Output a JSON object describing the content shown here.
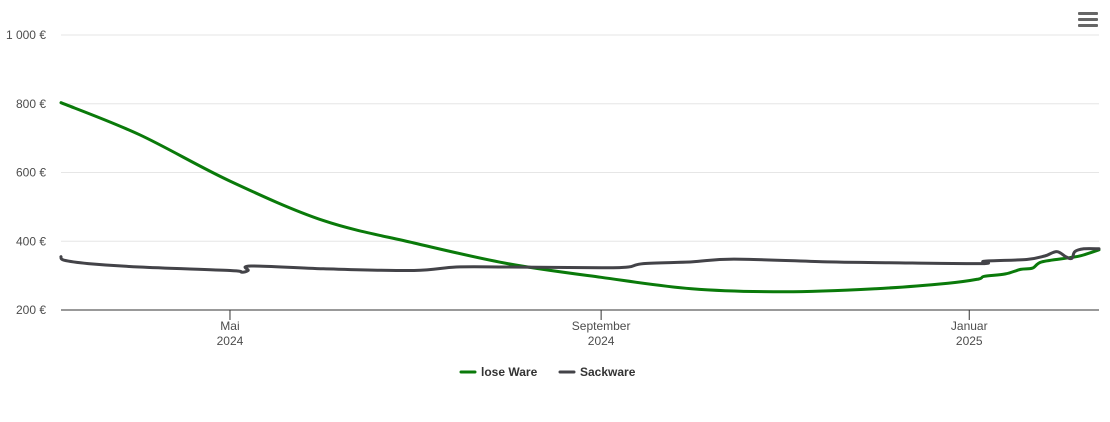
{
  "menu": {
    "icon": "hamburger-menu-icon"
  },
  "chart_data": {
    "type": "line",
    "y_ticks": [
      {
        "value": 200,
        "label": "200 €"
      },
      {
        "value": 400,
        "label": "400 €"
      },
      {
        "value": 600,
        "label": "600 €"
      },
      {
        "value": 800,
        "label": "800 €"
      },
      {
        "value": 1000,
        "label": "1 000 €"
      }
    ],
    "ylim": [
      200,
      1000
    ],
    "xlim": [
      "2024-03-06",
      "2025-02-13"
    ],
    "x_ticks": [
      {
        "date": "2024-05-01",
        "month": "Mai",
        "year": "2024"
      },
      {
        "date": "2024-09-01",
        "month": "September",
        "year": "2024"
      },
      {
        "date": "2025-01-01",
        "month": "Januar",
        "year": "2025"
      }
    ],
    "grid": true,
    "legend_position": "bottom-center",
    "series": [
      {
        "name": "lose Ware",
        "color": "#0a7a0a",
        "points": [
          [
            "2024-03-06",
            803
          ],
          [
            "2024-04-01",
            710
          ],
          [
            "2024-05-01",
            575
          ],
          [
            "2024-06-01",
            460
          ],
          [
            "2024-07-01",
            395
          ],
          [
            "2024-08-01",
            335
          ],
          [
            "2024-09-01",
            295
          ],
          [
            "2024-10-01",
            262
          ],
          [
            "2024-11-01",
            253
          ],
          [
            "2024-12-01",
            262
          ],
          [
            "2024-12-25",
            278
          ],
          [
            "2025-01-04",
            290
          ],
          [
            "2025-01-06",
            298
          ],
          [
            "2025-01-13",
            305
          ],
          [
            "2025-01-18",
            318
          ],
          [
            "2025-01-22",
            322
          ],
          [
            "2025-01-25",
            340
          ],
          [
            "2025-02-03",
            352
          ],
          [
            "2025-02-07",
            358
          ],
          [
            "2025-02-13",
            375
          ]
        ]
      },
      {
        "name": "Sackware",
        "color": "#434348",
        "points": [
          [
            "2024-03-06",
            355
          ],
          [
            "2024-03-07",
            345
          ],
          [
            "2024-03-15",
            335
          ],
          [
            "2024-04-01",
            325
          ],
          [
            "2024-05-01",
            315
          ],
          [
            "2024-05-05",
            310
          ],
          [
            "2024-05-07",
            315
          ],
          [
            "2024-05-08",
            328
          ],
          [
            "2024-06-01",
            320
          ],
          [
            "2024-07-01",
            315
          ],
          [
            "2024-07-15",
            325
          ],
          [
            "2024-08-01",
            325
          ],
          [
            "2024-09-01",
            323
          ],
          [
            "2024-09-10",
            325
          ],
          [
            "2024-09-15",
            335
          ],
          [
            "2024-10-01",
            340
          ],
          [
            "2024-10-15",
            348
          ],
          [
            "2024-11-15",
            340
          ],
          [
            "2024-12-01",
            338
          ],
          [
            "2025-01-05",
            335
          ],
          [
            "2025-01-06",
            342
          ],
          [
            "2025-01-20",
            347
          ],
          [
            "2025-01-26",
            357
          ],
          [
            "2025-01-30",
            370
          ],
          [
            "2025-02-02",
            355
          ],
          [
            "2025-02-04",
            350
          ],
          [
            "2025-02-05",
            370
          ],
          [
            "2025-02-08",
            378
          ],
          [
            "2025-02-13",
            378
          ]
        ]
      }
    ]
  }
}
